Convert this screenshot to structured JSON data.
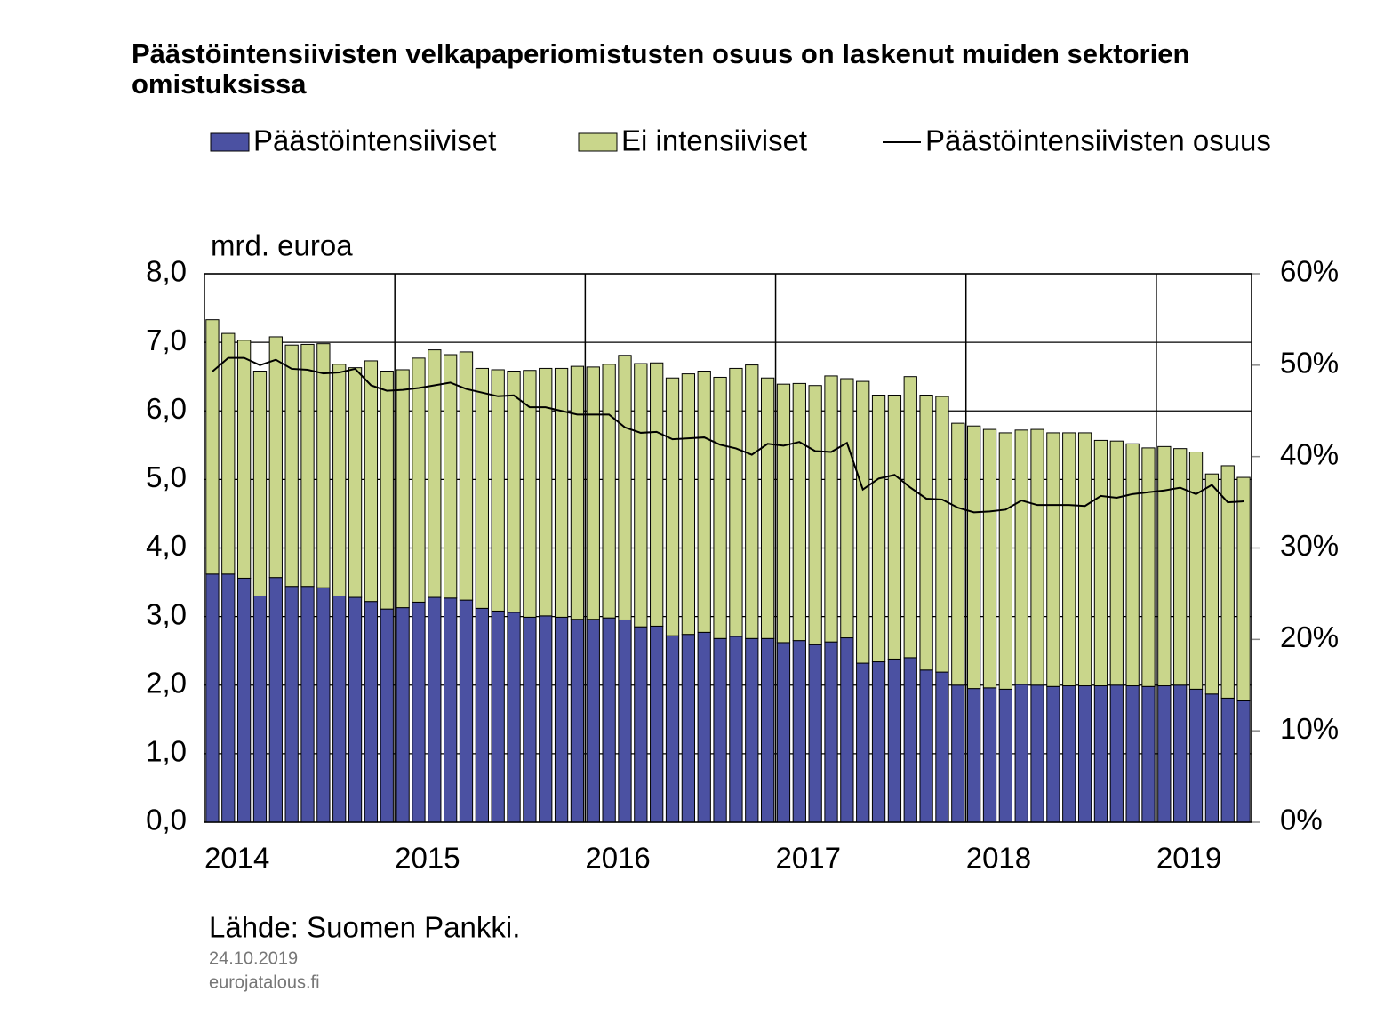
{
  "chart_data": {
    "type": "bar",
    "stacked": true,
    "title": "Päästöintensiivisten velkapaperiomistusten osuus on laskenut muiden sektorien omistuksissa",
    "y_label": "mrd. euroa",
    "source": "Lähde: Suomen Pankki.",
    "date": "24.10.2019",
    "website": "eurojatalous.fi",
    "categories": [
      "2014",
      null,
      null,
      null,
      null,
      null,
      null,
      null,
      null,
      null,
      null,
      null,
      "2015",
      null,
      null,
      null,
      null,
      null,
      null,
      null,
      null,
      null,
      null,
      null,
      "2016",
      null,
      null,
      null,
      null,
      null,
      null,
      null,
      null,
      null,
      null,
      null,
      "2017",
      null,
      null,
      null,
      null,
      null,
      null,
      null,
      null,
      null,
      null,
      null,
      "2018",
      null,
      null,
      null,
      null,
      null,
      null,
      null,
      null,
      null,
      null,
      null,
      "2019",
      null,
      null,
      null,
      null,
      null
    ],
    "series": [
      {
        "name": "Päästöintensiiviset",
        "color": "#4b51a2",
        "values": [
          3.62,
          3.62,
          3.56,
          3.3,
          3.57,
          3.44,
          3.44,
          3.42,
          3.3,
          3.28,
          3.22,
          3.11,
          3.13,
          3.21,
          3.28,
          3.27,
          3.24,
          3.12,
          3.08,
          3.06,
          2.99,
          3.01,
          2.99,
          2.96,
          2.96,
          2.98,
          2.95,
          2.85,
          2.86,
          2.72,
          2.74,
          2.77,
          2.68,
          2.71,
          2.68,
          2.68,
          2.62,
          2.65,
          2.59,
          2.63,
          2.69,
          2.32,
          2.34,
          2.38,
          2.4,
          2.22,
          2.19,
          2.0,
          1.95,
          1.96,
          1.94,
          2.01,
          2.0,
          1.98,
          1.99,
          1.99,
          1.99,
          2.0,
          1.99,
          1.98,
          1.99,
          2.0,
          1.94,
          1.87,
          1.81,
          1.77
        ]
      },
      {
        "name": "Ei intensiiviset",
        "color": "#c9d68b",
        "values": [
          3.71,
          3.51,
          3.47,
          3.28,
          3.51,
          3.52,
          3.53,
          3.56,
          3.38,
          3.35,
          3.51,
          3.47,
          3.47,
          3.56,
          3.61,
          3.55,
          3.62,
          3.5,
          3.52,
          3.52,
          3.6,
          3.61,
          3.63,
          3.69,
          3.68,
          3.7,
          3.86,
          3.84,
          3.84,
          3.76,
          3.8,
          3.81,
          3.81,
          3.91,
          3.99,
          3.8,
          3.77,
          3.75,
          3.78,
          3.88,
          3.78,
          4.11,
          3.89,
          3.85,
          4.1,
          4.01,
          4.02,
          3.82,
          3.83,
          3.77,
          3.74,
          3.71,
          3.73,
          3.7,
          3.69,
          3.69,
          3.58,
          3.56,
          3.53,
          3.48,
          3.49,
          3.45,
          3.46,
          3.21,
          3.39,
          3.26
        ]
      },
      {
        "name": "Päästöintensiivisten osuus",
        "color": "#000000",
        "axis": "y2",
        "type": "line",
        "values": [
          49.3,
          50.8,
          50.8,
          50.0,
          50.6,
          49.6,
          49.5,
          49.1,
          49.2,
          49.6,
          47.8,
          47.2,
          47.3,
          47.5,
          47.8,
          48.1,
          47.4,
          47.0,
          46.6,
          46.7,
          45.4,
          45.4,
          45.0,
          44.6,
          44.6,
          44.6,
          43.2,
          42.6,
          42.7,
          41.9,
          42.0,
          42.1,
          41.3,
          40.9,
          40.2,
          41.4,
          41.2,
          41.6,
          40.6,
          40.5,
          41.5,
          36.4,
          37.6,
          38.0,
          36.6,
          35.4,
          35.3,
          34.4,
          33.9,
          34.0,
          34.2,
          35.2,
          34.7,
          34.7,
          34.7,
          34.6,
          35.7,
          35.5,
          35.9,
          36.1,
          36.3,
          36.6,
          35.9,
          36.9,
          35.0,
          35.1
        ]
      }
    ],
    "ylim": [
      0,
      8
    ],
    "yticks": [
      {
        "value": 0,
        "label": "0,0"
      },
      {
        "value": 1,
        "label": "1,0"
      },
      {
        "value": 2,
        "label": "2,0"
      },
      {
        "value": 3,
        "label": "3,0"
      },
      {
        "value": 4,
        "label": "4,0"
      },
      {
        "value": 5,
        "label": "5,0"
      },
      {
        "value": 6,
        "label": "6,0"
      },
      {
        "value": 7,
        "label": "7,0"
      },
      {
        "value": 8,
        "label": "8,0"
      }
    ],
    "y2lim": [
      0,
      60
    ],
    "y2ticks": [
      {
        "value": 0,
        "label": "0%"
      },
      {
        "value": 10,
        "label": "10%"
      },
      {
        "value": 20,
        "label": "20%"
      },
      {
        "value": 30,
        "label": "30%"
      },
      {
        "value": 40,
        "label": "40%"
      },
      {
        "value": 50,
        "label": "50%"
      },
      {
        "value": 60,
        "label": "60%"
      }
    ],
    "grid": true
  }
}
